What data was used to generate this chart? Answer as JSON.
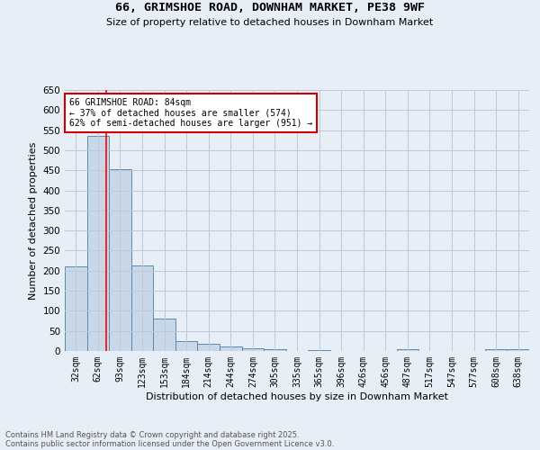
{
  "title1": "66, GRIMSHOE ROAD, DOWNHAM MARKET, PE38 9WF",
  "title2": "Size of property relative to detached houses in Downham Market",
  "xlabel": "Distribution of detached houses by size in Downham Market",
  "ylabel": "Number of detached properties",
  "categories": [
    "32sqm",
    "62sqm",
    "93sqm",
    "123sqm",
    "153sqm",
    "184sqm",
    "214sqm",
    "244sqm",
    "274sqm",
    "305sqm",
    "335sqm",
    "365sqm",
    "396sqm",
    "426sqm",
    "456sqm",
    "487sqm",
    "517sqm",
    "547sqm",
    "577sqm",
    "608sqm",
    "638sqm"
  ],
  "values": [
    210,
    535,
    453,
    213,
    80,
    25,
    19,
    11,
    7,
    5,
    0,
    3,
    0,
    0,
    0,
    4,
    0,
    0,
    0,
    4,
    4
  ],
  "bar_color": "#c8d8e8",
  "bar_edge_color": "#5a8ab0",
  "grid_color": "#c0c8d8",
  "background_color": "#e8eef5",
  "red_line_x": 1.37,
  "annotation_line1": "66 GRIMSHOE ROAD: 84sqm",
  "annotation_line2": "← 37% of detached houses are smaller (574)",
  "annotation_line3": "62% of semi-detached houses are larger (951) →",
  "annotation_box_color": "#ffffff",
  "annotation_box_edge": "#cc0000",
  "footnote1": "Contains HM Land Registry data © Crown copyright and database right 2025.",
  "footnote2": "Contains public sector information licensed under the Open Government Licence v3.0.",
  "ylim": [
    0,
    650
  ],
  "yticks": [
    0,
    50,
    100,
    150,
    200,
    250,
    300,
    350,
    400,
    450,
    500,
    550,
    600,
    650
  ]
}
